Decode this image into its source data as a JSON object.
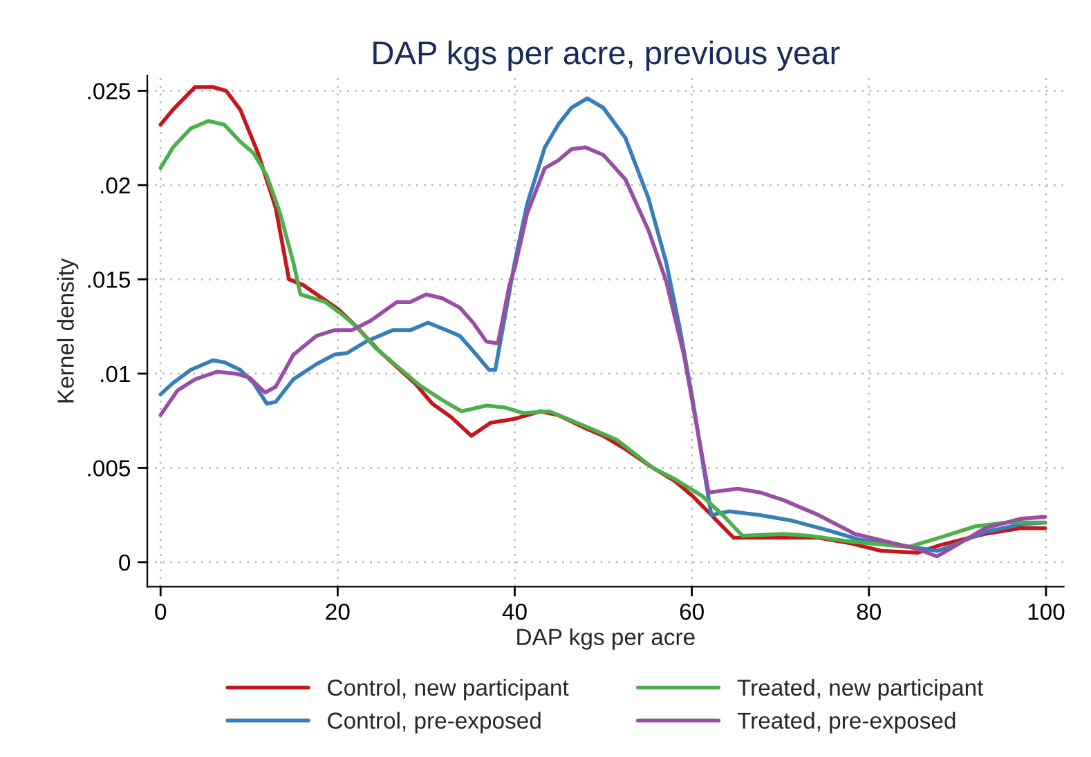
{
  "chart_data": {
    "type": "line",
    "title": "DAP kgs per acre, previous year",
    "xlabel": "DAP kgs per acre",
    "ylabel": "Kernel density",
    "xlim": [
      -1.5,
      102
    ],
    "ylim": [
      -0.0013,
      0.0258
    ],
    "xticks": [
      0,
      20,
      40,
      60,
      80,
      100
    ],
    "yticks": [
      {
        "value": 0,
        "label": "0"
      },
      {
        "value": 0.005,
        "label": ".005"
      },
      {
        "value": 0.01,
        "label": ".01"
      },
      {
        "value": 0.015,
        "label": ".015"
      },
      {
        "value": 0.02,
        "label": ".02"
      },
      {
        "value": 0.025,
        "label": ".025"
      }
    ],
    "grid": true,
    "legend": "bottom",
    "marker": "none",
    "line_style": "solid",
    "series": [
      {
        "name": "Control, new participant",
        "color": "#c4161c",
        "x": [
          0,
          1.4,
          3.9,
          5.9,
          7.4,
          9.0,
          11.0,
          13.0,
          14.5,
          16.1,
          20.1,
          22.1,
          24.7,
          28.7,
          30.7,
          32.8,
          35.1,
          37.3,
          40.0,
          42.9,
          44.9,
          48.0,
          50.0,
          52.5,
          55.6,
          58.1,
          60.1,
          62.2,
          64.7,
          70.3,
          74.3,
          77.9,
          81.4,
          85.5,
          88.0,
          93.1,
          97.1,
          99.9
        ],
        "values": [
          0.0232,
          0.024,
          0.0252,
          0.0252,
          0.025,
          0.024,
          0.0217,
          0.0188,
          0.015,
          0.0147,
          0.0134,
          0.0125,
          0.0112,
          0.0095,
          0.0084,
          0.0077,
          0.0067,
          0.0074,
          0.0076,
          0.008,
          0.0078,
          0.0071,
          0.0067,
          0.006,
          0.005,
          0.0043,
          0.0035,
          0.0025,
          0.0013,
          0.0013,
          0.0013,
          0.001,
          0.0006,
          0.0005,
          0.0009,
          0.0015,
          0.0018,
          0.0018
        ]
      },
      {
        "name": "Control, pre-exposed",
        "color": "#377eb8",
        "x": [
          0,
          1.4,
          3.4,
          5.9,
          7.2,
          9.0,
          10.5,
          12.0,
          13.0,
          15.0,
          17.6,
          19.6,
          21.1,
          23.2,
          26.2,
          28.2,
          30.2,
          32.3,
          33.8,
          35.3,
          37.1,
          37.8,
          40.0,
          41.4,
          43.4,
          44.9,
          46.4,
          48.2,
          50.0,
          52.5,
          55.1,
          57.1,
          58.6,
          60.1,
          61.2,
          62.2,
          64.2,
          67.7,
          71.3,
          75.3,
          78.9,
          83.4,
          87.7,
          89.0,
          93.1,
          97.1,
          99.9
        ],
        "values": [
          0.0089,
          0.0095,
          0.0102,
          0.0107,
          0.0106,
          0.0102,
          0.0095,
          0.0084,
          0.0085,
          0.0097,
          0.0105,
          0.011,
          0.0111,
          0.0117,
          0.0123,
          0.0123,
          0.0127,
          0.0123,
          0.012,
          0.0112,
          0.0102,
          0.0102,
          0.0159,
          0.019,
          0.022,
          0.0232,
          0.0241,
          0.0246,
          0.0241,
          0.0225,
          0.0193,
          0.0159,
          0.0125,
          0.0086,
          0.0054,
          0.0025,
          0.0027,
          0.0025,
          0.0022,
          0.0017,
          0.0012,
          0.0009,
          0.0006,
          0.0008,
          0.0016,
          0.002,
          0.0021
        ]
      },
      {
        "name": "Treated, new participant",
        "color": "#4daf4a",
        "x": [
          0,
          1.4,
          3.4,
          5.4,
          7.2,
          9.0,
          10.5,
          12.0,
          13.5,
          15.0,
          15.8,
          18.6,
          20.6,
          22.1,
          24.2,
          26.7,
          29.2,
          31.8,
          34.0,
          36.8,
          38.9,
          41.0,
          43.9,
          48.0,
          51.5,
          55.6,
          58.1,
          61.2,
          63.7,
          65.7,
          70.3,
          73.3,
          77.9,
          84.4,
          88.0,
          92.0,
          95.6,
          99.9
        ],
        "values": [
          0.0209,
          0.022,
          0.023,
          0.0234,
          0.0232,
          0.0223,
          0.0217,
          0.0205,
          0.0185,
          0.0159,
          0.0142,
          0.0138,
          0.0131,
          0.0125,
          0.0114,
          0.0104,
          0.0094,
          0.0086,
          0.008,
          0.0083,
          0.0082,
          0.0079,
          0.008,
          0.0072,
          0.0065,
          0.005,
          0.0044,
          0.0035,
          0.0024,
          0.0014,
          0.0015,
          0.0014,
          0.0011,
          0.0008,
          0.0013,
          0.0019,
          0.0021,
          0.0021
        ]
      },
      {
        "name": "Treated, pre-exposed",
        "color": "#984ea3",
        "x": [
          0,
          1.9,
          3.9,
          6.4,
          8.5,
          10.0,
          11.8,
          13.0,
          15.0,
          17.6,
          19.6,
          21.6,
          23.7,
          26.7,
          28.2,
          30.0,
          31.8,
          33.8,
          35.3,
          36.8,
          38.1,
          39.4,
          40.0,
          41.4,
          43.4,
          44.9,
          46.4,
          48.0,
          50.0,
          52.5,
          55.1,
          57.1,
          59.1,
          60.6,
          61.9,
          65.2,
          67.7,
          70.3,
          74.3,
          78.4,
          81.9,
          85.5,
          87.7,
          89.5,
          93.1,
          97.1,
          99.9
        ],
        "values": [
          0.0078,
          0.0091,
          0.0097,
          0.0101,
          0.01,
          0.0098,
          0.009,
          0.0093,
          0.011,
          0.012,
          0.0123,
          0.0123,
          0.0128,
          0.0138,
          0.0138,
          0.0142,
          0.014,
          0.0135,
          0.0127,
          0.0117,
          0.0116,
          0.0147,
          0.0156,
          0.0185,
          0.0209,
          0.0213,
          0.0219,
          0.022,
          0.0216,
          0.0203,
          0.0176,
          0.0149,
          0.011,
          0.0071,
          0.0037,
          0.0039,
          0.0037,
          0.0033,
          0.0025,
          0.0015,
          0.0011,
          0.0007,
          0.0003,
          0.0008,
          0.0018,
          0.0023,
          0.0024
        ]
      }
    ]
  }
}
